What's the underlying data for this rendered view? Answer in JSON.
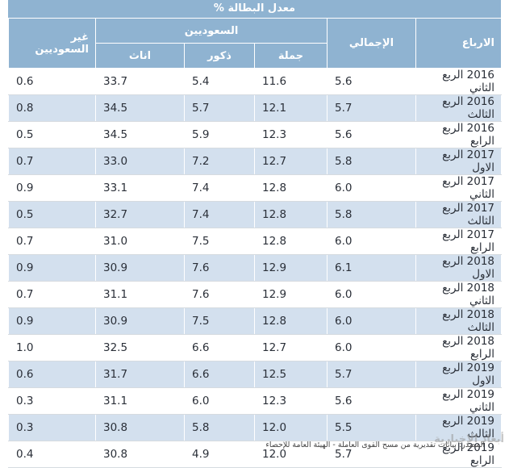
{
  "title": "معدل البطالة %",
  "headers": {
    "quarters": "الارباع",
    "total": "الإجمالي",
    "saudis": "السعوديين",
    "saudis_total": "جملة",
    "males": "ذكور",
    "females": "اناث",
    "non_saudis": "غير السعوديين"
  },
  "rows": [
    {
      "quarter": "2016 الربع الثاني",
      "total": "5.6",
      "saudi_total": "11.6",
      "males": "5.4",
      "females": "33.7",
      "non_saudi": "0.6"
    },
    {
      "quarter": "2016 الربع الثالث",
      "total": "5.7",
      "saudi_total": "12.1",
      "males": "5.7",
      "females": "34.5",
      "non_saudi": "0.8"
    },
    {
      "quarter": "2016 الربع الرابع",
      "total": "5.6",
      "saudi_total": "12.3",
      "males": "5.9",
      "females": "34.5",
      "non_saudi": "0.5"
    },
    {
      "quarter": "2017 الربع الاول",
      "total": "5.8",
      "saudi_total": "12.7",
      "males": "7.2",
      "females": "33.0",
      "non_saudi": "0.7"
    },
    {
      "quarter": "2017 الربع الثاني",
      "total": "6.0",
      "saudi_total": "12.8",
      "males": "7.4",
      "females": "33.1",
      "non_saudi": "0.9"
    },
    {
      "quarter": "2017 الربع الثالث",
      "total": "5.8",
      "saudi_total": "12.8",
      "males": "7.4",
      "females": "32.7",
      "non_saudi": "0.5"
    },
    {
      "quarter": "2017 الربع الرابع",
      "total": "6.0",
      "saudi_total": "12.8",
      "males": "7.5",
      "females": "31.0",
      "non_saudi": "0.7"
    },
    {
      "quarter": "2018 الربع الاول",
      "total": "6.1",
      "saudi_total": "12.9",
      "males": "7.6",
      "females": "30.9",
      "non_saudi": "0.9"
    },
    {
      "quarter": "2018 الربع الثاني",
      "total": "6.0",
      "saudi_total": "12.9",
      "males": "7.6",
      "females": "31.1",
      "non_saudi": "0.7"
    },
    {
      "quarter": "2018 الربع الثالث",
      "total": "6.0",
      "saudi_total": "12.8",
      "males": "7.5",
      "females": "30.9",
      "non_saudi": "0.9"
    },
    {
      "quarter": "2018 الربع الرابع",
      "total": "6.0",
      "saudi_total": "12.7",
      "males": "6.6",
      "females": "32.5",
      "non_saudi": "1.0"
    },
    {
      "quarter": "2019 الربع الاول",
      "total": "5.7",
      "saudi_total": "12.5",
      "males": "6.6",
      "females": "31.7",
      "non_saudi": "0.6"
    },
    {
      "quarter": "2019 الربع الثاني",
      "total": "5.6",
      "saudi_total": "12.3",
      "males": "6.0",
      "females": "31.1",
      "non_saudi": "0.3"
    },
    {
      "quarter": "2019 الربع الثالث",
      "total": "5.5",
      "saudi_total": "12.0",
      "males": "5.8",
      "females": "30.8",
      "non_saudi": "0.3"
    },
    {
      "quarter": "2019 الربع الرابع",
      "total": "5.7",
      "saudi_total": "12.0",
      "males": "4.9",
      "females": "30.8",
      "non_saudi": "0.4"
    }
  ],
  "source": "المصدر: بيانات تقديرية من مسح القوى العاملة - الهيئة العامة للإحصاء",
  "watermark": "أبعاد الإخبارية"
}
